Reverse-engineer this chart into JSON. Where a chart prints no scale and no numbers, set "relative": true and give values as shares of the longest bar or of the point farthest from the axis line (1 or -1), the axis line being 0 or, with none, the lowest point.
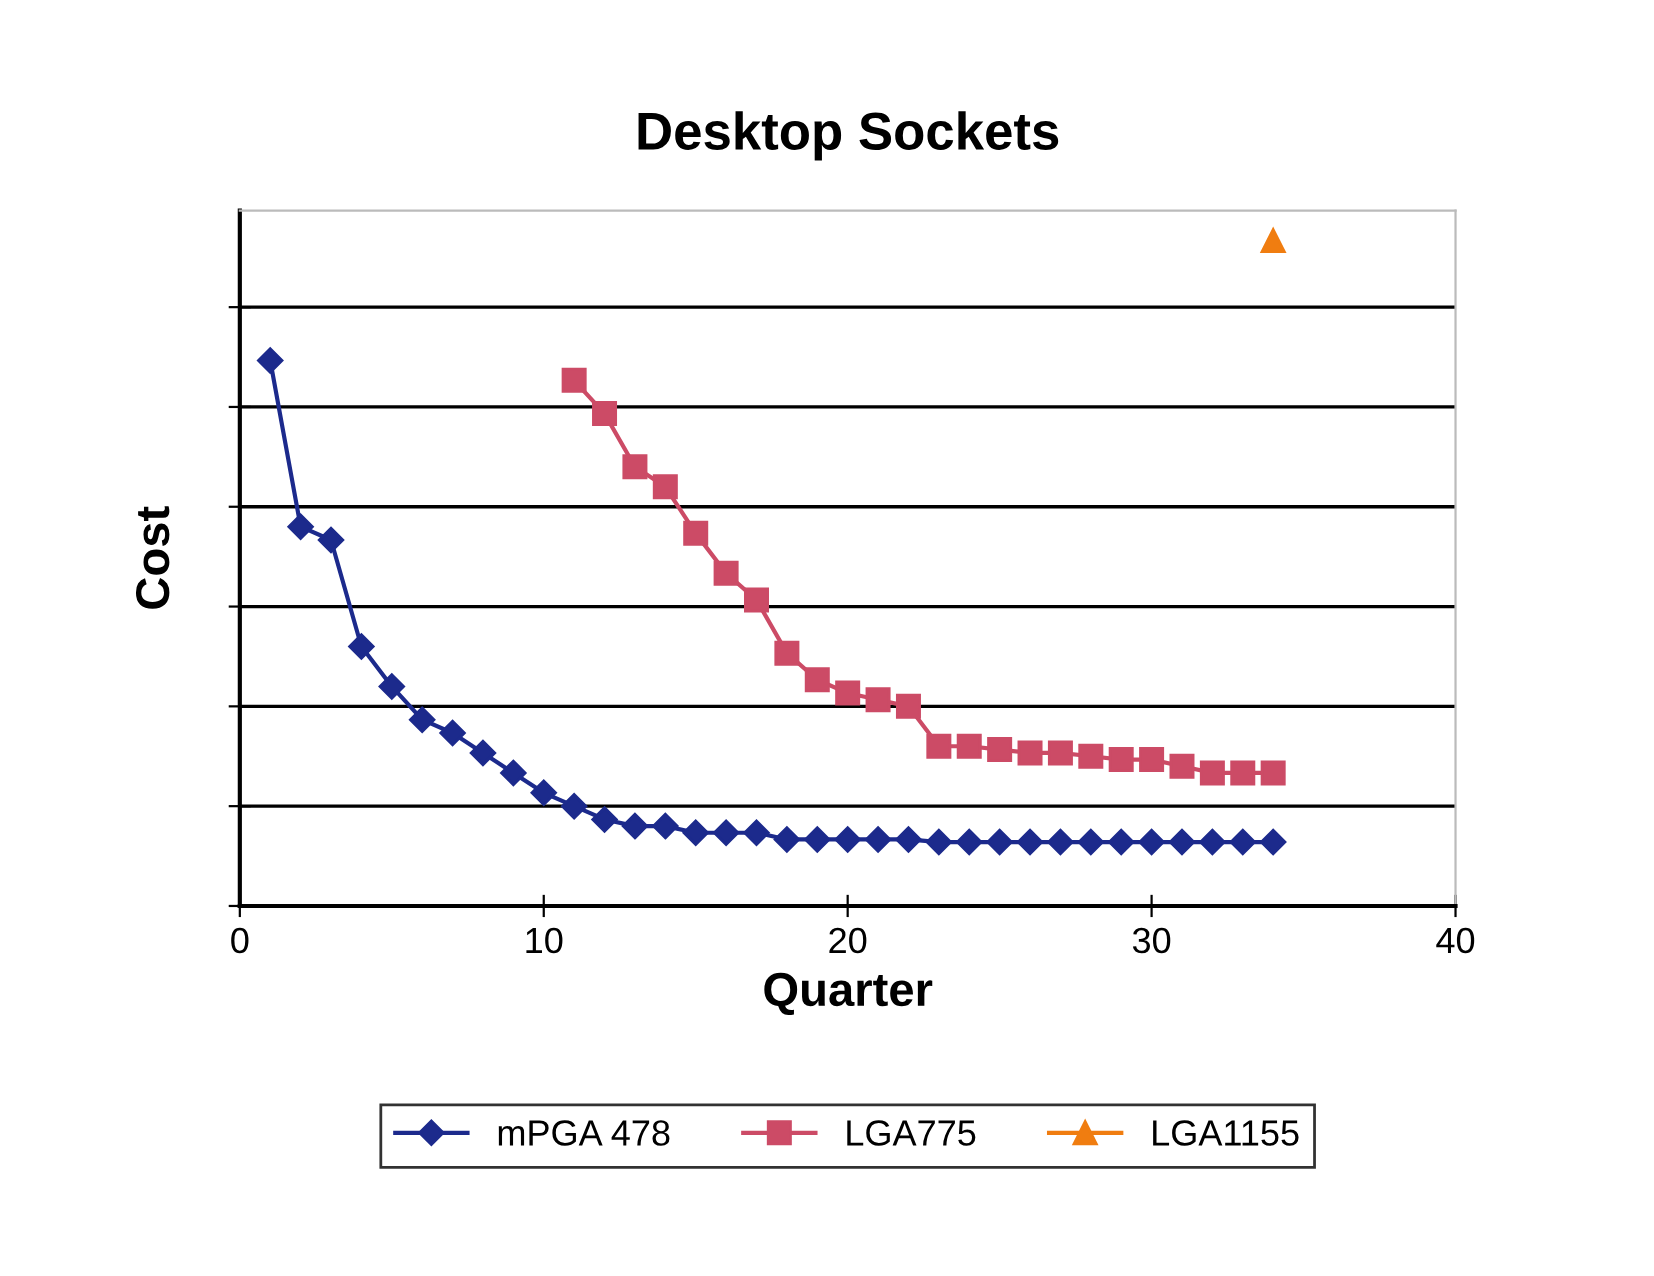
{
  "chart_data": {
    "type": "line",
    "title": "Desktop Sockets",
    "xlabel": "Quarter",
    "ylabel": "Cost",
    "relative": true,
    "xlim": [
      0,
      40
    ],
    "xticks": [
      0,
      10,
      20,
      30,
      40
    ],
    "grid": "y",
    "legend": "bottom",
    "tick_labels": "x",
    "series": [
      {
        "name": "mPGA 478",
        "color": "#1c2a8c",
        "marker": "diamond",
        "x": [
          1,
          2,
          3,
          4,
          5,
          6,
          7,
          8,
          9,
          10,
          11,
          12,
          13,
          14,
          15,
          16,
          17,
          18,
          19,
          20,
          21,
          22,
          23,
          24,
          25,
          26,
          27,
          28,
          29,
          30,
          31,
          32,
          33,
          34
        ],
        "values": [
          0.82,
          0.57,
          0.55,
          0.39,
          0.33,
          0.28,
          0.26,
          0.23,
          0.2,
          0.17,
          0.15,
          0.13,
          0.12,
          0.12,
          0.11,
          0.11,
          0.11,
          0.1,
          0.1,
          0.1,
          0.1,
          0.1,
          0.096,
          0.096,
          0.096,
          0.096,
          0.096,
          0.096,
          0.096,
          0.096,
          0.096,
          0.096,
          0.096,
          0.096
        ]
      },
      {
        "name": "LGA775",
        "color": "#cc4b66",
        "marker": "square",
        "x": [
          11,
          12,
          13,
          14,
          15,
          16,
          17,
          18,
          19,
          20,
          21,
          22,
          23,
          24,
          25,
          26,
          27,
          28,
          29,
          30,
          31,
          32,
          33,
          34
        ],
        "values": [
          0.79,
          0.74,
          0.66,
          0.63,
          0.56,
          0.5,
          0.46,
          0.38,
          0.34,
          0.32,
          0.31,
          0.3,
          0.24,
          0.24,
          0.235,
          0.23,
          0.23,
          0.225,
          0.22,
          0.22,
          0.21,
          0.2,
          0.2,
          0.2
        ]
      },
      {
        "name": "LGA1155",
        "color": "#f07d10",
        "marker": "triangle",
        "x": [
          34
        ],
        "values": [
          1
        ]
      }
    ]
  }
}
